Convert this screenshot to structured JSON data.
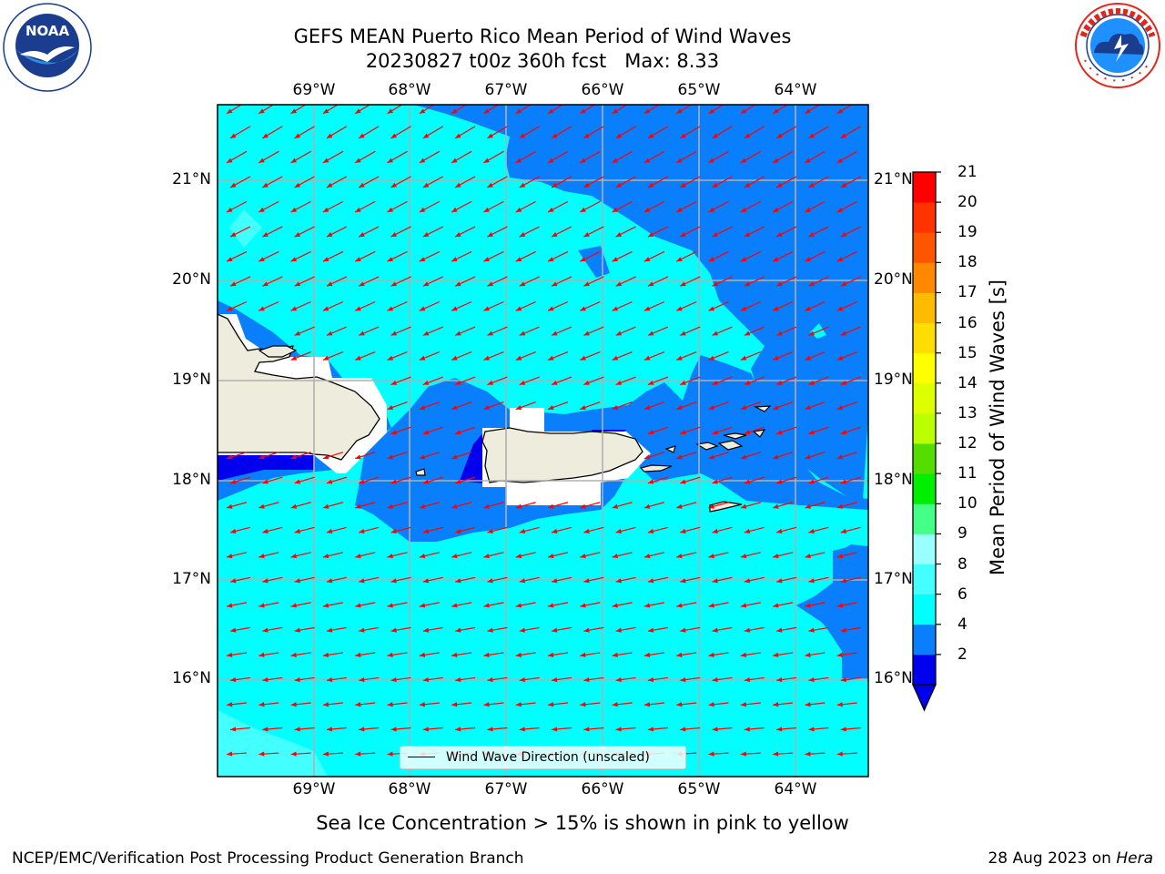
{
  "title": {
    "line1": "GEFS MEAN Puerto Rico Mean Period of Wind Waves",
    "line2": "20230827 t00z 360h fcst   Max: 8.33"
  },
  "axes": {
    "longitude_ticks": [
      "69°W",
      "68°W",
      "67°W",
      "66°W",
      "65°W",
      "64°W"
    ],
    "latitude_ticks": [
      "21°N",
      "20°N",
      "19°N",
      "18°N",
      "17°N",
      "16°N"
    ]
  },
  "legend": {
    "label": "Wind Wave Direction (unscaled)"
  },
  "colorbar": {
    "label": "Mean Period of Wind Waves [s]",
    "ticks": [
      "21",
      "20",
      "19",
      "18",
      "17",
      "16",
      "15",
      "14",
      "13",
      "12",
      "11",
      "10",
      "9",
      "8",
      "6",
      "4",
      "2"
    ],
    "bins": [
      {
        "color": "#0000ee"
      },
      {
        "color": "#0a7ffe"
      },
      {
        "color": "#00ffff"
      },
      {
        "color": "#44ffff"
      },
      {
        "color": "#99ffff"
      },
      {
        "color": "#44ff88"
      },
      {
        "color": "#00ee00"
      },
      {
        "color": "#55dd00"
      },
      {
        "color": "#bbff00"
      },
      {
        "color": "#ddff00"
      },
      {
        "color": "#ffff00"
      },
      {
        "color": "#ffdd00"
      },
      {
        "color": "#ffbb00"
      },
      {
        "color": "#ff8800"
      },
      {
        "color": "#ff5500"
      },
      {
        "color": "#ff3300"
      },
      {
        "color": "#ff0000"
      }
    ]
  },
  "logos": {
    "noaa": {
      "text": "NOAA",
      "ring": "NATIONAL OCEANIC AND ATMOSPHERIC ADMINISTRATION · U.S. DEPARTMENT OF COMMERCE"
    },
    "nws": {
      "ring": "NATIONAL WEATHER SERVICE"
    }
  },
  "map_colors": {
    "ocean_light": "#00ffff",
    "ocean_mid": "#0a7ffe",
    "ocean_dark": "#0000ee",
    "ocean_pale": "#44ffff",
    "land": "#eeecdc",
    "arrow": "#ff0000"
  },
  "subtitle": "Sea Ice Concentration > 15% is shown in pink to yellow",
  "footer": {
    "left": "NCEP/EMC/Verification Post Processing Product Generation Branch",
    "right_date": "28 Aug 2023 on ",
    "right_host": "Hera"
  }
}
